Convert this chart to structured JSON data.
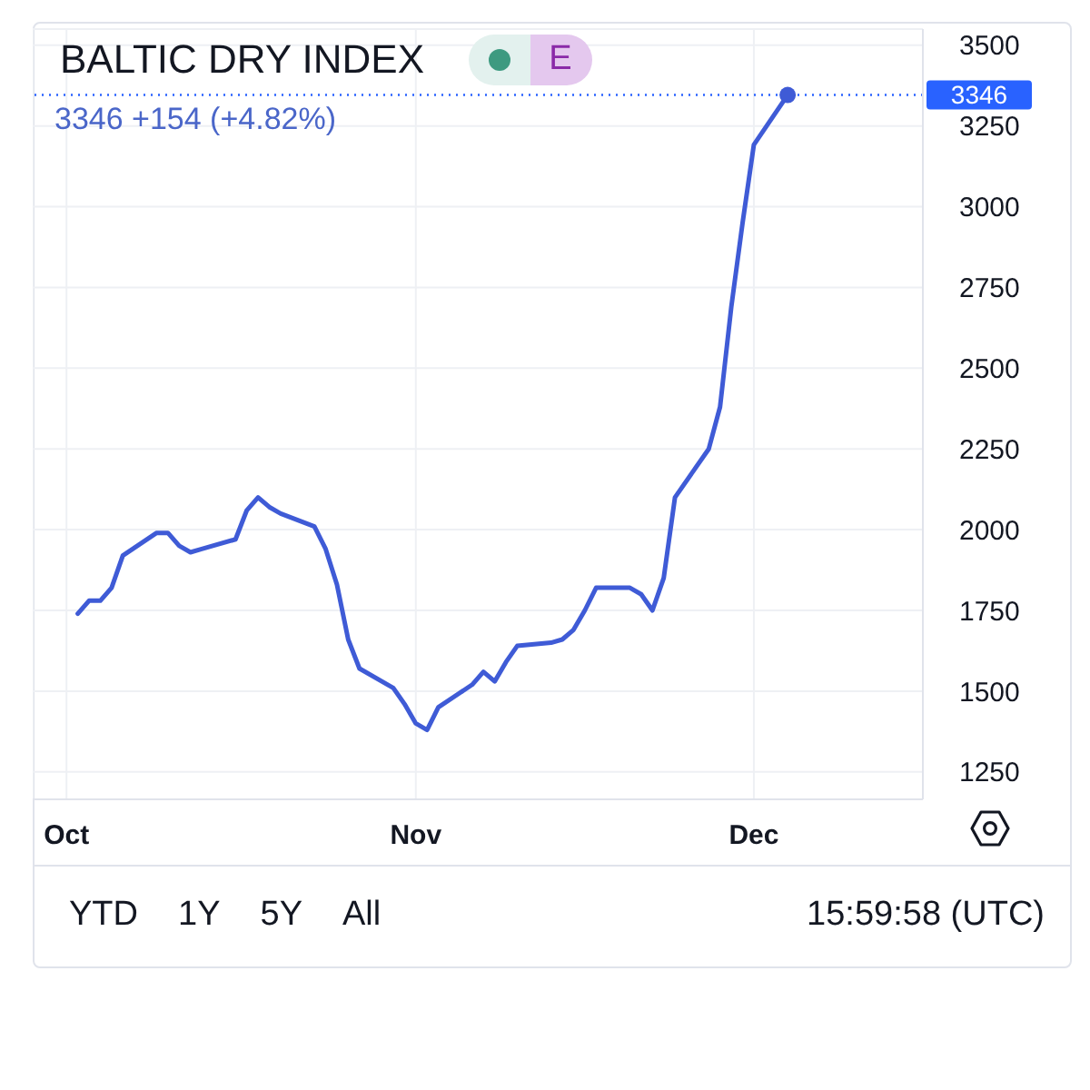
{
  "chart_data": {
    "type": "line",
    "title": "BALTIC DRY INDEX",
    "subtitle": "3346 +154 (+4.82%)",
    "annotations": [
      "E",
      "YTD",
      "1Y",
      "5Y",
      "All",
      "15:59:58 (UTC)"
    ],
    "x": [
      "--10-02",
      "--10-03",
      "--10-04",
      "--10-05",
      "--10-06",
      "--10-09",
      "--10-10",
      "--10-11",
      "--10-12",
      "--10-13",
      "--10-16",
      "--10-17",
      "--10-18",
      "--10-19",
      "--10-20",
      "--10-23",
      "--10-24",
      "--10-25",
      "--10-26",
      "--10-27",
      "--10-30",
      "--10-31",
      "--11-01",
      "--11-02",
      "--11-03",
      "--11-06",
      "--11-07",
      "--11-08",
      "--11-09",
      "--11-10",
      "--11-13",
      "--11-14",
      "--11-15",
      "--11-16",
      "--11-17",
      "--11-20",
      "--11-21",
      "--11-22",
      "--11-23",
      "--11-24",
      "--11-27",
      "--11-28",
      "--11-29",
      "--11-30",
      "--12-01",
      "--12-04"
    ],
    "series": [
      {
        "color": "#3f5bd6",
        "values": [
          1740,
          1780,
          1780,
          1820,
          1920,
          1990,
          1990,
          1950,
          1930,
          1940,
          1970,
          2060,
          2100,
          2070,
          2050,
          2010,
          1940,
          1830,
          1660,
          1570,
          1510,
          1460,
          1400,
          1380,
          1450,
          1520,
          1560,
          1530,
          1590,
          1640,
          1650,
          1660,
          1690,
          1750,
          1820,
          1820,
          1800,
          1750,
          1850,
          2100,
          2250,
          2380,
          2690,
          2950,
          3192,
          3346
        ]
      },
      {
        "type": "scatter",
        "x": [
          "--12-04"
        ],
        "values": [
          3346
        ],
        "color": "#3f5bd6",
        "marker": "circle"
      }
    ],
    "ref_lines": [
      {
        "axis": "y",
        "value": 3346,
        "label": "3346",
        "color": "#2962ff",
        "line_style": "dotted"
      }
    ],
    "xlim": [
      "--09-28",
      "--12-16"
    ],
    "xticks": [
      {
        "value": "--10-01",
        "label": "Oct"
      },
      {
        "value": "--11-01",
        "label": "Nov"
      },
      {
        "value": "--12-01",
        "label": "Dec"
      }
    ],
    "ylim": [
      1165,
      3550
    ],
    "yticks": [
      1250,
      1500,
      1750,
      2000,
      2250,
      2500,
      2750,
      3000,
      3250,
      3500
    ],
    "grid": true
  }
}
